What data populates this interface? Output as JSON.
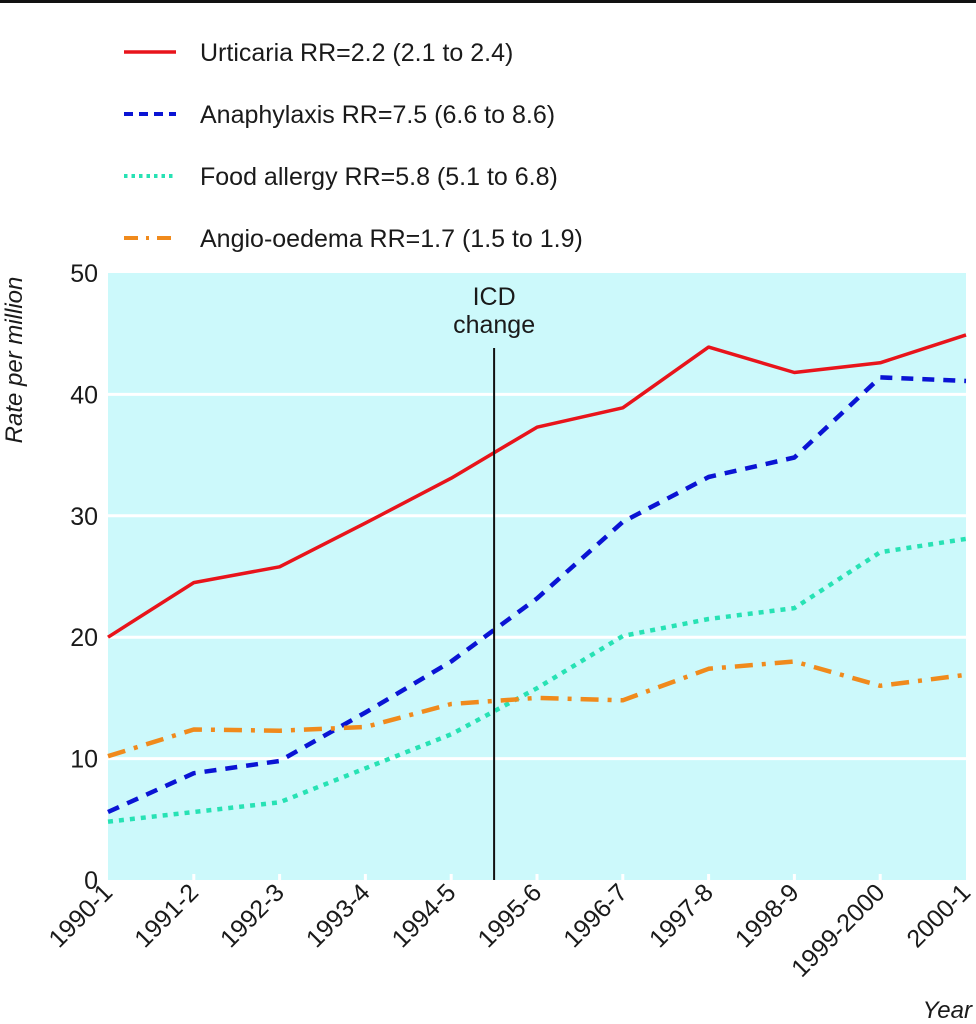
{
  "chart_data": {
    "type": "line",
    "title": "",
    "xlabel": "Year",
    "ylabel": "Rate per million",
    "ylim": [
      0,
      50
    ],
    "yticks": [
      0,
      10,
      20,
      30,
      40,
      50
    ],
    "grid": true,
    "background_color": "#ccf9fb",
    "categories": [
      "1990-1",
      "1991-2",
      "1992-3",
      "1993-4",
      "1994-5",
      "1995-6",
      "1996-7",
      "1997-8",
      "1998-9",
      "1999-2000",
      "2000-1"
    ],
    "legend_position": "top-left",
    "series": [
      {
        "name": "Urticaria",
        "legend_label": "Urticaria  RR=2.2 (2.1 to 2.4)",
        "color": "#e8141b",
        "style": "solid",
        "values": [
          20.0,
          24.5,
          25.8,
          29.4,
          33.1,
          37.3,
          38.9,
          43.9,
          41.8,
          42.6,
          44.9
        ]
      },
      {
        "name": "Anaphylaxis",
        "legend_label": "Anaphylaxis  RR=7.5 (6.6 to 8.6)",
        "color": "#0a14d4",
        "style": "dashed",
        "values": [
          5.6,
          8.8,
          9.8,
          13.8,
          18.0,
          23.2,
          29.5,
          33.2,
          34.8,
          41.4,
          41.1
        ]
      },
      {
        "name": "Food allergy",
        "legend_label": "Food allergy  RR=5.8 (5.1 to 6.8)",
        "color": "#27e2b4",
        "style": "dotted",
        "values": [
          4.8,
          5.6,
          6.4,
          9.2,
          12.0,
          15.8,
          20.1,
          21.5,
          22.4,
          27.0,
          28.1
        ]
      },
      {
        "name": "Angio-oedema",
        "legend_label": "Angio-oedema  RR=1.7 (1.5 to 1.9)",
        "color": "#f08a1c",
        "style": "dash-dot",
        "values": [
          10.2,
          12.4,
          12.3,
          12.6,
          14.5,
          15.0,
          14.8,
          17.4,
          18.0,
          16.0,
          16.9
        ]
      }
    ],
    "annotations": [
      {
        "text_lines": [
          "ICD",
          "change"
        ],
        "type": "vertical-line",
        "x_between": [
          "1994-5",
          "1995-6"
        ],
        "color": "#111111"
      }
    ]
  }
}
